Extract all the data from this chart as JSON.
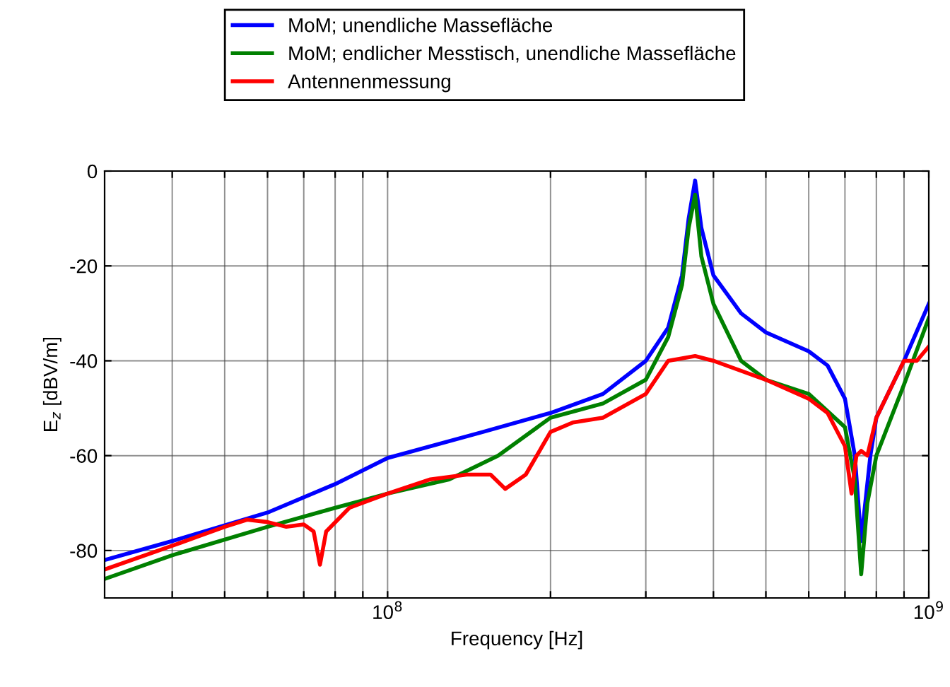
{
  "chart_data": {
    "type": "line",
    "xlabel": "Frequency [Hz]",
    "ylabel": "E$_{z}$ [dBV/m]",
    "log": "x",
    "grid": true,
    "legend": "top",
    "xlim": [
      30000000,
      1000000000
    ],
    "xticks": [
      {
        "value": 40000000,
        "label": null
      },
      {
        "value": 50000000,
        "label": null
      },
      {
        "value": 60000000,
        "label": null
      },
      {
        "value": 70000000,
        "label": null
      },
      {
        "value": 80000000,
        "label": null
      },
      {
        "value": 90000000,
        "label": null
      },
      {
        "value": 100000000,
        "label": "10$^{8}$"
      },
      {
        "value": 200000000,
        "label": null
      },
      {
        "value": 300000000,
        "label": null
      },
      {
        "value": 400000000,
        "label": null
      },
      {
        "value": 500000000,
        "label": null
      },
      {
        "value": 600000000,
        "label": null
      },
      {
        "value": 700000000,
        "label": null
      },
      {
        "value": 800000000,
        "label": null
      },
      {
        "value": 900000000,
        "label": null
      },
      {
        "value": 1000000000,
        "label": "10$^{9}$"
      }
    ],
    "ylim": [
      -90,
      0
    ],
    "yticks": [
      -80,
      -60,
      -40,
      -20,
      0
    ],
    "series": [
      {
        "name": "MoM; unendliche Massefläche",
        "color": "#0000ff",
        "x": [
          30000000,
          40000000,
          60000000,
          80000000,
          100000000,
          150000000,
          200000000,
          250000000,
          300000000,
          330000000,
          350000000,
          360000000,
          370000000,
          380000000,
          400000000,
          450000000,
          500000000,
          600000000,
          650000000,
          700000000,
          730000000,
          750000000,
          780000000,
          800000000,
          900000000,
          1000000000
        ],
        "values": [
          -82,
          -78,
          -72,
          -66,
          -60.5,
          -55,
          -51,
          -47,
          -40,
          -33,
          -22,
          -10,
          -2,
          -12,
          -22,
          -30,
          -34,
          -38,
          -41,
          -48,
          -60,
          -78,
          -60,
          -52,
          -40,
          -28
        ]
      },
      {
        "name": "MoM; endlicher Messtisch, unendliche Massefläche",
        "color": "#008000",
        "x": [
          30000000,
          40000000,
          60000000,
          80000000,
          100000000,
          130000000,
          160000000,
          200000000,
          250000000,
          300000000,
          330000000,
          350000000,
          360000000,
          370000000,
          380000000,
          400000000,
          450000000,
          500000000,
          600000000,
          700000000,
          730000000,
          750000000,
          770000000,
          800000000,
          900000000,
          1000000000
        ],
        "values": [
          -86,
          -81,
          -75,
          -71,
          -68,
          -65,
          -60,
          -52,
          -49,
          -44,
          -35,
          -24,
          -12,
          -5,
          -18,
          -28,
          -40,
          -44,
          -47,
          -54,
          -65,
          -85,
          -70,
          -60,
          -45,
          -31
        ]
      },
      {
        "name": "Antennenmessung",
        "color": "#ff0000",
        "x": [
          30000000,
          40000000,
          50000000,
          55000000,
          60000000,
          65000000,
          70000000,
          73000000,
          75000000,
          77000000,
          85000000,
          100000000,
          120000000,
          140000000,
          155000000,
          165000000,
          180000000,
          200000000,
          220000000,
          250000000,
          300000000,
          330000000,
          370000000,
          400000000,
          500000000,
          600000000,
          650000000,
          700000000,
          720000000,
          735000000,
          750000000,
          770000000,
          800000000,
          900000000,
          950000000,
          1000000000
        ],
        "values": [
          -84,
          -79,
          -75,
          -73.5,
          -74,
          -75,
          -74.5,
          -76,
          -83,
          -76,
          -71,
          -68,
          -65,
          -64,
          -64,
          -67,
          -64,
          -55,
          -53,
          -52,
          -47,
          -40,
          -39,
          -40,
          -44,
          -48,
          -51,
          -58,
          -68,
          -60,
          -59,
          -60,
          -52,
          -40,
          -40,
          -37
        ]
      }
    ]
  }
}
